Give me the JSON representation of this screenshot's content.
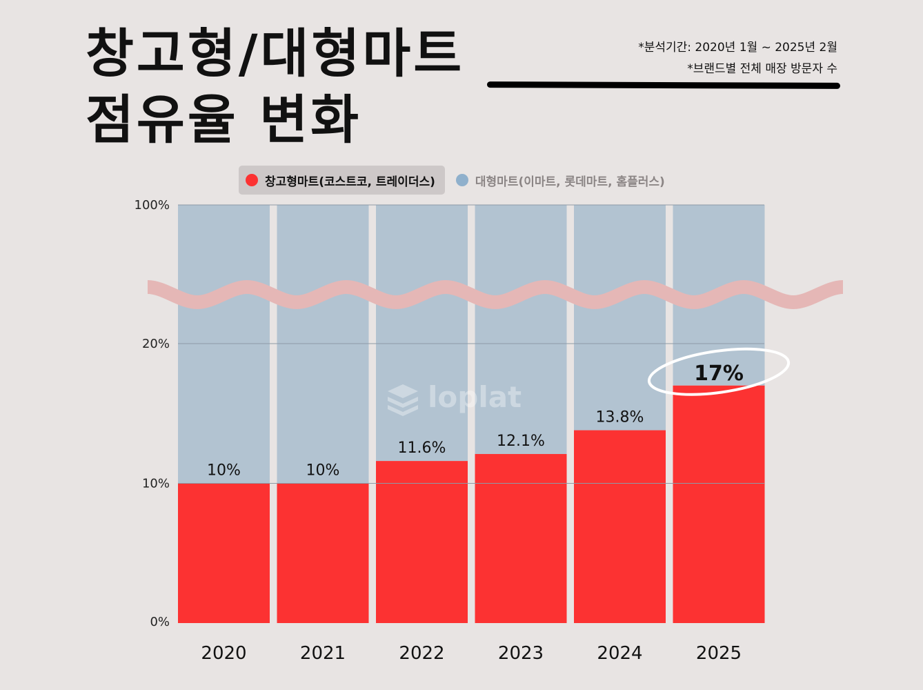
{
  "title": {
    "line1": "창고형/대형마트",
    "line2": "점유율 변화"
  },
  "notes": {
    "period": "*분석기간: 2020년 1월 ~ 2025년 2월",
    "basis": "*브랜드별 전체 매장 방문자 수"
  },
  "watermark": "loplat",
  "colors": {
    "warehouse": "#fc3232",
    "hypermarket": "#b2c3d1",
    "break_band": "#e5b7b6",
    "background": "#e8e4e3"
  },
  "chart_data": {
    "type": "bar",
    "stacked": true,
    "categories": [
      "2020",
      "2021",
      "2022",
      "2023",
      "2024",
      "2025"
    ],
    "series": [
      {
        "name": "창고형마트(코스트코, 트레이더스)",
        "values": [
          10,
          10,
          11.6,
          12.1,
          13.8,
          17
        ],
        "color": "#fc3232"
      },
      {
        "name": "대형마트(이마트, 롯데마트, 홈플러스)",
        "values": [
          90,
          90,
          88.4,
          87.9,
          86.2,
          83
        ],
        "color": "#b2c3d1"
      }
    ],
    "data_labels": [
      "10%",
      "10%",
      "11.6%",
      "12.1%",
      "13.8%",
      "17%"
    ],
    "highlight_index": 5,
    "y_ticks": [
      "0%",
      "10%",
      "20%",
      "100%"
    ],
    "y_axis_break": {
      "from": 20,
      "to": 100
    },
    "ylim": [
      0,
      100
    ],
    "legend_position": "top",
    "grid": true
  }
}
